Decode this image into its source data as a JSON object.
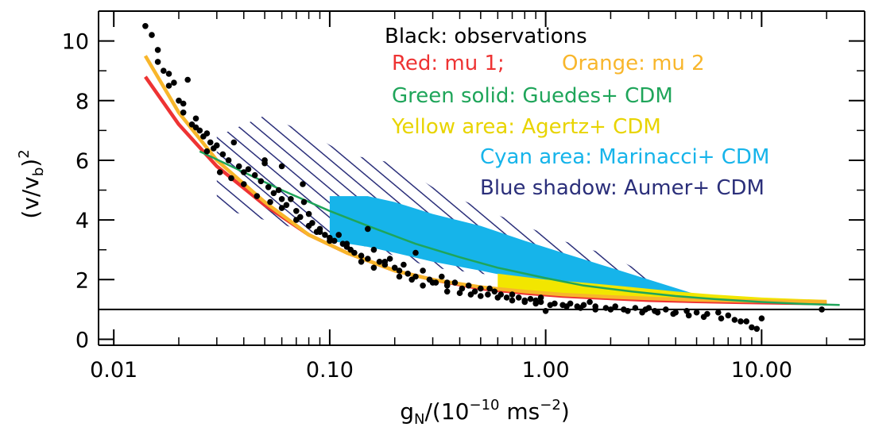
{
  "chart_data": {
    "type": "scatter",
    "title": "",
    "xlabel": {
      "base": "g",
      "sub": "N",
      "mid": "/(10",
      "sup1": "−10",
      "tail": " ms",
      "sup2": "−2",
      "close": ")"
    },
    "ylabel": {
      "open": "(v/v",
      "sub": "b",
      "close": ")",
      "sup": "2"
    },
    "xscale": "log",
    "xlim": [
      0.0085,
      30
    ],
    "ylim": [
      -0.2,
      11
    ],
    "grid": false,
    "legend_position": "top-right",
    "xticks": [
      {
        "value": 0.01,
        "label": "0.01"
      },
      {
        "value": 0.1,
        "label": "0.10"
      },
      {
        "value": 1,
        "label": "1.00"
      },
      {
        "value": 10,
        "label": "10.00"
      }
    ],
    "yticks": [
      {
        "value": 0,
        "label": "0"
      },
      {
        "value": 2,
        "label": "2"
      },
      {
        "value": 4,
        "label": "4"
      },
      {
        "value": 6,
        "label": "6"
      },
      {
        "value": 8,
        "label": "8"
      },
      {
        "value": 10,
        "label": "10"
      }
    ],
    "reference_line": {
      "y": 1,
      "color": "#000000"
    },
    "legend": [
      {
        "text": "Black: observations",
        "color": "#000000"
      },
      {
        "text": "Red: mu 1;",
        "color": "#ee3333"
      },
      {
        "text": "Orange: mu 2",
        "color": "#f8b62b"
      },
      {
        "text": "Green solid: Guedes+ CDM",
        "color": "#1fa55a"
      },
      {
        "text": "Yellow area: Agertz+ CDM",
        "color": "#e8d400"
      },
      {
        "text": "Cyan area: Marinacci+ CDM",
        "color": "#16b4ea"
      },
      {
        "text": "Blue shadow: Aumer+ CDM",
        "color": "#2b2f7a"
      }
    ],
    "series": [
      {
        "kind": "curve",
        "color": "#ee3333",
        "x": [
          0.014,
          0.02,
          0.03,
          0.05,
          0.08,
          0.12,
          0.2,
          0.3,
          0.5,
          0.8,
          1.2,
          2,
          3,
          5,
          8,
          12,
          20
        ],
        "y": [
          8.8,
          7.2,
          5.8,
          4.5,
          3.5,
          2.9,
          2.3,
          2.0,
          1.7,
          1.55,
          1.45,
          1.37,
          1.31,
          1.27,
          1.24,
          1.22,
          1.2
        ]
      },
      {
        "kind": "curve",
        "color": "#f8b62b",
        "x": [
          0.014,
          0.02,
          0.03,
          0.05,
          0.08,
          0.12,
          0.2,
          0.3,
          0.5,
          0.8,
          1.2,
          2,
          3,
          5,
          8,
          12,
          20
        ],
        "y": [
          9.5,
          7.6,
          6.0,
          4.6,
          3.5,
          2.9,
          2.3,
          2.0,
          1.75,
          1.6,
          1.5,
          1.42,
          1.37,
          1.32,
          1.29,
          1.27,
          1.26
        ]
      },
      {
        "kind": "curve",
        "color": "#1fa55a",
        "x": [
          0.025,
          0.04,
          0.06,
          0.1,
          0.15,
          0.25,
          0.4,
          0.6,
          1.0,
          1.5,
          2.5,
          4,
          6,
          10,
          15,
          23
        ],
        "y": [
          6.3,
          5.6,
          5.0,
          4.3,
          3.8,
          3.2,
          2.75,
          2.4,
          2.05,
          1.8,
          1.6,
          1.45,
          1.35,
          1.25,
          1.19,
          1.15
        ]
      },
      {
        "kind": "band",
        "color": "#16b4ea",
        "x": [
          0.1,
          0.15,
          0.2,
          0.3,
          0.5,
          0.8,
          1.2,
          2,
          3,
          5
        ],
        "upper": [
          4.8,
          4.8,
          4.6,
          4.2,
          3.8,
          3.3,
          2.9,
          2.4,
          2.0,
          1.5
        ],
        "lower": [
          3.3,
          3.1,
          2.9,
          2.6,
          2.3,
          2.0,
          1.8,
          1.6,
          1.5,
          1.45
        ]
      },
      {
        "kind": "band",
        "color": "#f2e600",
        "x": [
          0.6,
          1.0,
          1.5,
          2.5,
          4,
          6,
          10,
          15,
          20
        ],
        "upper": [
          2.2,
          2.0,
          1.9,
          1.75,
          1.6,
          1.5,
          1.4,
          1.35,
          1.32
        ],
        "lower": [
          1.7,
          1.55,
          1.48,
          1.4,
          1.33,
          1.28,
          1.24,
          1.21,
          1.2
        ]
      },
      {
        "kind": "hatch",
        "color": "#2b2f7a",
        "x": [
          0.03,
          0.05,
          0.08,
          0.12,
          0.2,
          0.3,
          0.5,
          0.8,
          1.2,
          2,
          3.5
        ],
        "upper": [
          6.8,
          7.5,
          6.9,
          6.2,
          5.9,
          5.1,
          4.4,
          3.8,
          3.3,
          2.8,
          1.9
        ],
        "lower": [
          4.4,
          4.0,
          3.6,
          3.3,
          2.8,
          2.4,
          2.2,
          2.0,
          1.8,
          1.6,
          1.5
        ]
      },
      {
        "kind": "points",
        "name": "observations",
        "color": "#000000",
        "x": [
          0.014,
          0.015,
          0.016,
          0.017,
          0.018,
          0.019,
          0.02,
          0.021,
          0.022,
          0.023,
          0.024,
          0.025,
          0.026,
          0.027,
          0.028,
          0.029,
          0.03,
          0.032,
          0.034,
          0.036,
          0.038,
          0.04,
          0.042,
          0.045,
          0.048,
          0.05,
          0.052,
          0.055,
          0.058,
          0.06,
          0.063,
          0.066,
          0.07,
          0.073,
          0.076,
          0.08,
          0.083,
          0.087,
          0.09,
          0.095,
          0.1,
          0.105,
          0.11,
          0.115,
          0.12,
          0.125,
          0.13,
          0.14,
          0.15,
          0.16,
          0.17,
          0.18,
          0.19,
          0.2,
          0.21,
          0.22,
          0.23,
          0.25,
          0.27,
          0.29,
          0.31,
          0.33,
          0.35,
          0.38,
          0.41,
          0.44,
          0.47,
          0.5,
          0.54,
          0.58,
          0.62,
          0.66,
          0.7,
          0.75,
          0.8,
          0.85,
          0.9,
          0.95,
          1.0,
          1.1,
          1.2,
          1.3,
          1.4,
          1.5,
          1.7,
          1.9,
          2.1,
          2.3,
          2.6,
          2.9,
          3.2,
          3.6,
          4.0,
          4.5,
          5.0,
          5.6,
          6.3,
          7.0,
          8.0,
          9.0,
          10.0,
          19.0,
          0.016,
          0.018,
          0.021,
          0.024,
          0.027,
          0.031,
          0.035,
          0.04,
          0.046,
          0.053,
          0.06,
          0.07,
          0.08,
          0.09,
          0.1,
          0.12,
          0.14,
          0.16,
          0.18,
          0.21,
          0.24,
          0.27,
          0.3,
          0.35,
          0.4,
          0.45,
          0.5,
          0.6,
          0.7,
          0.8,
          0.9,
          1.05,
          1.25,
          1.45,
          1.7,
          2.0,
          2.4,
          2.8,
          3.3,
          3.9,
          4.6,
          5.4,
          6.5,
          7.5,
          8.5,
          9.5,
          0.05,
          0.06,
          0.075,
          0.15,
          0.25,
          0.35,
          0.55,
          0.95,
          1.6,
          3.0
        ],
        "y": [
          10.5,
          10.2,
          9.7,
          9.0,
          8.5,
          8.6,
          8.0,
          7.9,
          8.7,
          7.2,
          7.4,
          7.0,
          6.8,
          6.9,
          6.6,
          6.4,
          6.5,
          6.2,
          6.0,
          6.6,
          5.8,
          5.6,
          5.7,
          5.5,
          5.3,
          5.9,
          5.1,
          4.9,
          5.0,
          4.7,
          4.5,
          4.7,
          4.3,
          4.1,
          4.6,
          4.2,
          3.9,
          3.6,
          3.7,
          3.5,
          3.4,
          3.3,
          3.5,
          3.2,
          3.1,
          3.0,
          2.9,
          2.8,
          2.7,
          3.0,
          2.6,
          2.5,
          2.7,
          2.4,
          2.3,
          2.5,
          2.2,
          2.1,
          2.3,
          2.0,
          1.9,
          2.1,
          1.8,
          1.9,
          1.7,
          1.8,
          1.6,
          1.7,
          1.5,
          1.6,
          1.5,
          1.4,
          1.5,
          1.4,
          1.3,
          1.35,
          1.3,
          1.25,
          0.95,
          1.2,
          1.15,
          1.2,
          1.1,
          1.15,
          1.1,
          1.05,
          1.1,
          1.0,
          1.05,
          1.0,
          0.95,
          1.0,
          0.9,
          0.95,
          0.9,
          0.85,
          0.9,
          0.8,
          0.6,
          0.4,
          0.7,
          1.0,
          9.3,
          8.9,
          7.6,
          7.1,
          6.3,
          5.6,
          5.4,
          5.2,
          4.8,
          4.6,
          4.4,
          4.0,
          3.8,
          3.6,
          3.3,
          3.2,
          2.6,
          2.4,
          2.6,
          2.1,
          2.0,
          1.8,
          1.9,
          1.6,
          1.55,
          1.5,
          1.45,
          1.4,
          1.3,
          1.25,
          1.2,
          1.15,
          1.1,
          1.05,
          1.0,
          1.0,
          0.95,
          0.9,
          0.9,
          0.85,
          0.8,
          0.75,
          0.7,
          0.65,
          0.6,
          0.35,
          6.0,
          5.8,
          5.2,
          3.7,
          2.9,
          1.9,
          1.7,
          1.4,
          1.25,
          1.05
        ]
      }
    ]
  }
}
